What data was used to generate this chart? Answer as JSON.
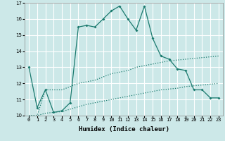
{
  "xlabel": "Humidex (Indice chaleur)",
  "bg_color": "#cce8e8",
  "grid_color": "#ffffff",
  "line_color": "#1a7a6e",
  "xlim": [
    -0.5,
    23.5
  ],
  "ylim": [
    10,
    17
  ],
  "xticks": [
    0,
    1,
    2,
    3,
    4,
    5,
    6,
    7,
    8,
    9,
    10,
    11,
    12,
    13,
    14,
    15,
    16,
    17,
    18,
    19,
    20,
    21,
    22,
    23
  ],
  "yticks": [
    10,
    11,
    12,
    13,
    14,
    15,
    16,
    17
  ],
  "line1_x": [
    0,
    1,
    2,
    3,
    4,
    5,
    6,
    7,
    8,
    9,
    10,
    11,
    12,
    13,
    14,
    15,
    16,
    17,
    18,
    19,
    20,
    21,
    22,
    23
  ],
  "line1_y": [
    13.0,
    10.5,
    11.6,
    10.2,
    10.3,
    10.8,
    15.5,
    15.6,
    15.5,
    16.0,
    16.5,
    16.8,
    16.0,
    15.3,
    16.8,
    14.8,
    13.7,
    13.5,
    12.9,
    12.8,
    11.6,
    11.6,
    11.1,
    11.1
  ],
  "line2_x": [
    0,
    1,
    2,
    3,
    4,
    5,
    6,
    7,
    8,
    9,
    10,
    11,
    12,
    13,
    14,
    15,
    16,
    17,
    18,
    19,
    20,
    21,
    22,
    23
  ],
  "line2_y": [
    10.0,
    10.0,
    10.15,
    10.2,
    10.25,
    10.4,
    10.55,
    10.7,
    10.8,
    10.9,
    11.0,
    11.1,
    11.2,
    11.3,
    11.4,
    11.5,
    11.6,
    11.65,
    11.7,
    11.8,
    11.85,
    11.9,
    11.95,
    12.0
  ],
  "line3_x": [
    0,
    1,
    2,
    3,
    4,
    5,
    6,
    7,
    8,
    9,
    10,
    11,
    12,
    13,
    14,
    15,
    16,
    17,
    18,
    19,
    20,
    21,
    22,
    23
  ],
  "line3_y": [
    10.0,
    10.0,
    11.6,
    11.6,
    11.6,
    11.8,
    12.0,
    12.1,
    12.2,
    12.4,
    12.6,
    12.7,
    12.8,
    13.0,
    13.1,
    13.2,
    13.3,
    13.4,
    13.45,
    13.5,
    13.55,
    13.6,
    13.65,
    13.7
  ],
  "marker": "D",
  "markersize": 2.0,
  "linewidth": 0.9,
  "xlabel_fontsize": 6.5,
  "tick_fontsize": 5.0
}
